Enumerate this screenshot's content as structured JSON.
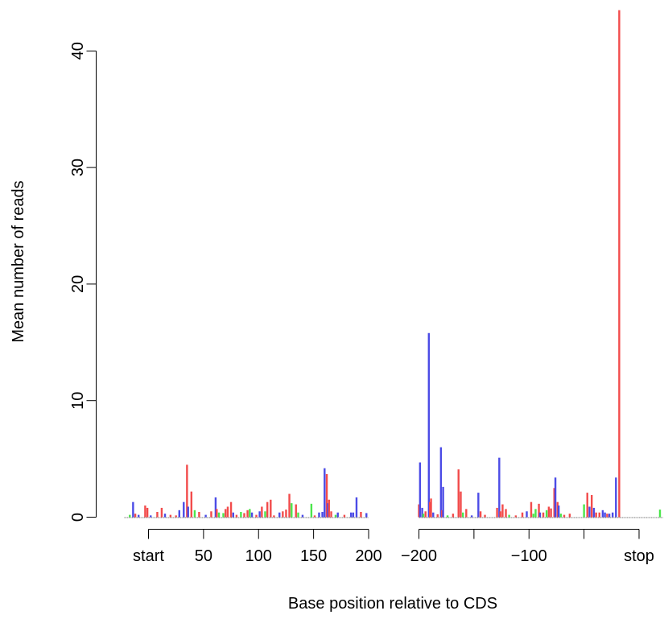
{
  "chart_data": {
    "type": "bar",
    "title": "",
    "xlabel": "Base position relative to CDS",
    "ylabel": "Mean number of reads",
    "ylim": [
      0,
      44
    ],
    "y_ticks": [
      0,
      10,
      20,
      30,
      40
    ],
    "grid": false,
    "panels": [
      {
        "name": "start-anchored",
        "xlim": [
          -22,
          200
        ],
        "tick_values": [
          0,
          50,
          100,
          150,
          200
        ],
        "tick_labels": [
          "start",
          "50",
          "100",
          "150",
          "200"
        ]
      },
      {
        "name": "stop-anchored",
        "xlim": [
          -200,
          22
        ],
        "tick_values": [
          -200,
          -150,
          -100,
          -50,
          0
        ],
        "tick_labels": [
          "−200",
          "",
          "−100",
          "",
          "stop"
        ]
      }
    ],
    "frame_colors": {
      "frame0": "#f24b4b",
      "frame1": "#4b4be6",
      "frame2": "#4be64b"
    },
    "series": [
      {
        "panel": 0,
        "points": [
          [
            -17,
            0.2,
            "frame2"
          ],
          [
            -14,
            1.3,
            "frame1"
          ],
          [
            -12,
            0.3,
            "frame0"
          ],
          [
            -9,
            0.2,
            "frame1"
          ],
          [
            -3,
            1.0,
            "frame0"
          ],
          [
            -1,
            0.8,
            "frame0"
          ],
          [
            2,
            0.15,
            "frame1"
          ],
          [
            8,
            0.45,
            "frame0"
          ],
          [
            12,
            0.8,
            "frame0"
          ],
          [
            15,
            0.3,
            "frame1"
          ],
          [
            20,
            0.2,
            "frame0"
          ],
          [
            25,
            0.15,
            "frame0"
          ],
          [
            28,
            0.6,
            "frame1"
          ],
          [
            32,
            1.3,
            "frame1"
          ],
          [
            35,
            4.5,
            "frame0"
          ],
          [
            36,
            0.9,
            "frame1"
          ],
          [
            39,
            2.2,
            "frame0"
          ],
          [
            42,
            0.6,
            "frame2"
          ],
          [
            46,
            0.45,
            "frame0"
          ],
          [
            52,
            0.2,
            "frame1"
          ],
          [
            57,
            0.5,
            "frame0"
          ],
          [
            61,
            1.7,
            "frame1"
          ],
          [
            62,
            0.7,
            "frame0"
          ],
          [
            64,
            0.4,
            "frame2"
          ],
          [
            68,
            0.35,
            "frame2"
          ],
          [
            70,
            0.7,
            "frame0"
          ],
          [
            72,
            0.9,
            "frame0"
          ],
          [
            75,
            1.3,
            "frame0"
          ],
          [
            77,
            0.4,
            "frame1"
          ],
          [
            80,
            0.2,
            "frame0"
          ],
          [
            84,
            0.45,
            "frame2"
          ],
          [
            87,
            0.35,
            "frame0"
          ],
          [
            90,
            0.6,
            "frame0"
          ],
          [
            92,
            0.7,
            "frame2"
          ],
          [
            94,
            0.4,
            "frame1"
          ],
          [
            98,
            0.2,
            "frame0"
          ],
          [
            101,
            0.5,
            "frame1"
          ],
          [
            103,
            0.9,
            "frame0"
          ],
          [
            106,
            0.5,
            "frame2"
          ],
          [
            108,
            1.3,
            "frame0"
          ],
          [
            111,
            1.5,
            "frame0"
          ],
          [
            114,
            0.15,
            "frame0"
          ],
          [
            119,
            0.4,
            "frame1"
          ],
          [
            122,
            0.5,
            "frame0"
          ],
          [
            125,
            0.65,
            "frame0"
          ],
          [
            128,
            2.0,
            "frame0"
          ],
          [
            130,
            1.2,
            "frame2"
          ],
          [
            134,
            1.1,
            "frame0"
          ],
          [
            136,
            0.4,
            "frame2"
          ],
          [
            140,
            0.2,
            "frame1"
          ],
          [
            148,
            1.15,
            "frame2"
          ],
          [
            151,
            0.15,
            "frame0"
          ],
          [
            155,
            0.4,
            "frame1"
          ],
          [
            158,
            0.45,
            "frame1"
          ],
          [
            160,
            4.2,
            "frame1"
          ],
          [
            162,
            3.7,
            "frame0"
          ],
          [
            163,
            1.2,
            "frame1"
          ],
          [
            164,
            1.5,
            "frame0"
          ],
          [
            166,
            0.5,
            "frame0"
          ],
          [
            170,
            0.2,
            "frame2"
          ],
          [
            172,
            0.4,
            "frame1"
          ],
          [
            178,
            0.2,
            "frame0"
          ],
          [
            184,
            0.4,
            "frame1"
          ],
          [
            186,
            0.4,
            "frame1"
          ],
          [
            189,
            1.7,
            "frame1"
          ],
          [
            193,
            0.45,
            "frame0"
          ],
          [
            198,
            0.35,
            "frame1"
          ]
        ]
      },
      {
        "panel": 1,
        "points": [
          [
            -200,
            1.1,
            "frame0"
          ],
          [
            -199,
            4.7,
            "frame1"
          ],
          [
            -197,
            0.8,
            "frame1"
          ],
          [
            -196,
            0.3,
            "frame2"
          ],
          [
            -194,
            0.5,
            "frame0"
          ],
          [
            -191,
            15.8,
            "frame1"
          ],
          [
            -190,
            1.3,
            "frame0"
          ],
          [
            -189,
            1.6,
            "frame0"
          ],
          [
            -187,
            0.4,
            "frame1"
          ],
          [
            -183,
            0.25,
            "frame0"
          ],
          [
            -180,
            6.0,
            "frame1"
          ],
          [
            -179,
            0.6,
            "frame0"
          ],
          [
            -178,
            2.6,
            "frame1"
          ],
          [
            -174,
            0.15,
            "frame2"
          ],
          [
            -169,
            0.3,
            "frame0"
          ],
          [
            -164,
            4.1,
            "frame0"
          ],
          [
            -162,
            2.2,
            "frame0"
          ],
          [
            -160,
            0.4,
            "frame2"
          ],
          [
            -157,
            0.7,
            "frame0"
          ],
          [
            -152,
            0.15,
            "frame1"
          ],
          [
            -146,
            2.1,
            "frame1"
          ],
          [
            -144,
            0.5,
            "frame0"
          ],
          [
            -140,
            0.2,
            "frame0"
          ],
          [
            -129,
            0.8,
            "frame0"
          ],
          [
            -127,
            5.1,
            "frame1"
          ],
          [
            -126,
            0.5,
            "frame0"
          ],
          [
            -124,
            1.1,
            "frame0"
          ],
          [
            -121,
            0.7,
            "frame0"
          ],
          [
            -118,
            0.2,
            "frame2"
          ],
          [
            -112,
            0.15,
            "frame0"
          ],
          [
            -106,
            0.4,
            "frame0"
          ],
          [
            -102,
            0.5,
            "frame1"
          ],
          [
            -98,
            1.3,
            "frame0"
          ],
          [
            -96,
            0.3,
            "frame2"
          ],
          [
            -94,
            0.7,
            "frame2"
          ],
          [
            -91,
            1.15,
            "frame0"
          ],
          [
            -90,
            0.4,
            "frame1"
          ],
          [
            -87,
            0.4,
            "frame0"
          ],
          [
            -84,
            0.6,
            "frame2"
          ],
          [
            -82,
            0.9,
            "frame0"
          ],
          [
            -80,
            0.75,
            "frame0"
          ],
          [
            -77,
            2.5,
            "frame0"
          ],
          [
            -76,
            3.4,
            "frame1"
          ],
          [
            -74,
            1.3,
            "frame0"
          ],
          [
            -73,
            1.0,
            "frame1"
          ],
          [
            -71,
            0.3,
            "frame2"
          ],
          [
            -68,
            0.2,
            "frame0"
          ],
          [
            -63,
            0.3,
            "frame0"
          ],
          [
            -50,
            1.1,
            "frame2"
          ],
          [
            -47,
            2.1,
            "frame0"
          ],
          [
            -45,
            0.9,
            "frame1"
          ],
          [
            -43,
            1.9,
            "frame0"
          ],
          [
            -41,
            0.8,
            "frame1"
          ],
          [
            -39,
            0.4,
            "frame0"
          ],
          [
            -36,
            0.4,
            "frame0"
          ],
          [
            -33,
            0.6,
            "frame1"
          ],
          [
            -31,
            0.4,
            "frame1"
          ],
          [
            -29,
            0.3,
            "frame0"
          ],
          [
            -27,
            0.3,
            "frame1"
          ],
          [
            -24,
            0.4,
            "frame1"
          ],
          [
            -21,
            3.4,
            "frame1"
          ],
          [
            -18,
            43.5,
            "frame0"
          ],
          [
            19,
            0.65,
            "frame2"
          ]
        ]
      }
    ]
  }
}
